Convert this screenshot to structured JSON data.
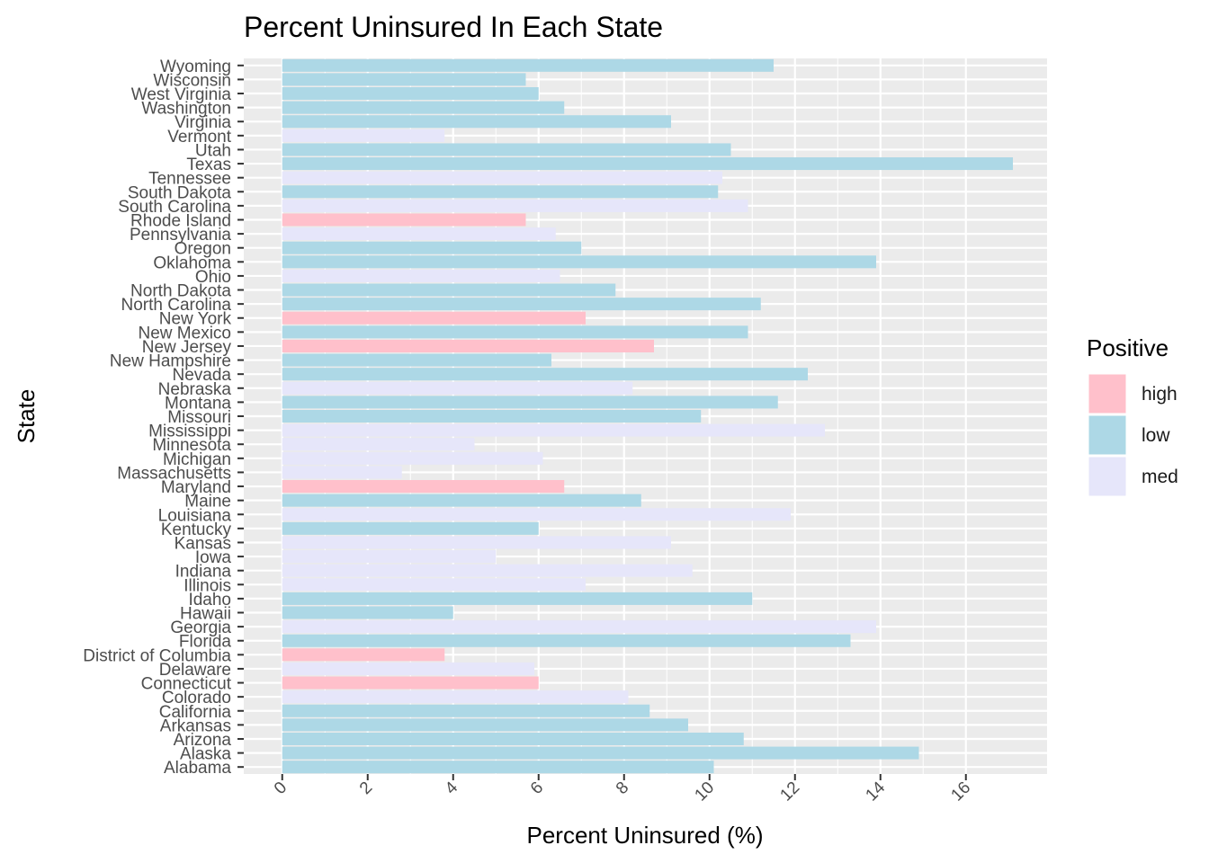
{
  "chart_data": {
    "type": "bar",
    "orientation": "horizontal",
    "title": "Percent Uninsured In Each State",
    "xlabel": "Percent Uninsured (%)",
    "ylabel": "State",
    "xlim": [
      -0.9,
      17.9
    ],
    "xticks": [
      0,
      2,
      4,
      6,
      8,
      10,
      12,
      14,
      16
    ],
    "grid": true,
    "legend": {
      "title": "Positive",
      "position": "right",
      "entries": [
        {
          "label": "high",
          "color": "#ffc0cb"
        },
        {
          "label": "low",
          "color": "#add8e6"
        },
        {
          "label": "med",
          "color": "#e6e6fa"
        }
      ]
    },
    "categories": [
      "Alabama",
      "Alaska",
      "Arizona",
      "Arkansas",
      "California",
      "Colorado",
      "Connecticut",
      "Delaware",
      "District of Columbia",
      "Florida",
      "Georgia",
      "Hawaii",
      "Idaho",
      "Illinois",
      "Indiana",
      "Iowa",
      "Kansas",
      "Kentucky",
      "Louisiana",
      "Maine",
      "Maryland",
      "Massachusetts",
      "Michigan",
      "Minnesota",
      "Mississippi",
      "Missouri",
      "Montana",
      "Nebraska",
      "Nevada",
      "New Hampshire",
      "New Jersey",
      "New Mexico",
      "New York",
      "North Carolina",
      "North Dakota",
      "Ohio",
      "Oklahoma",
      "Oregon",
      "Pennsylvania",
      "Rhode Island",
      "South Carolina",
      "South Dakota",
      "Tennessee",
      "Texas",
      "Utah",
      "Vermont",
      "Virginia",
      "Washington",
      "West Virginia",
      "Wisconsin",
      "Wyoming"
    ],
    "values": [
      10.1,
      14.9,
      10.8,
      9.5,
      8.6,
      8.1,
      6.0,
      5.9,
      3.8,
      13.3,
      13.9,
      4.0,
      11.0,
      7.1,
      9.6,
      5.0,
      9.1,
      6.0,
      11.9,
      8.4,
      6.6,
      2.8,
      6.1,
      4.5,
      12.7,
      9.8,
      11.6,
      8.2,
      12.3,
      6.3,
      8.7,
      10.9,
      7.1,
      11.2,
      7.8,
      6.5,
      13.9,
      7.0,
      6.4,
      5.7,
      10.9,
      10.2,
      10.3,
      17.1,
      10.5,
      3.8,
      9.1,
      6.6,
      6.0,
      5.7,
      11.5
    ],
    "groups": [
      "low",
      "low",
      "low",
      "low",
      "low",
      "med",
      "high",
      "med",
      "high",
      "low",
      "med",
      "low",
      "low",
      "med",
      "med",
      "med",
      "med",
      "low",
      "med",
      "low",
      "high",
      "med",
      "med",
      "med",
      "med",
      "low",
      "low",
      "med",
      "low",
      "low",
      "high",
      "low",
      "high",
      "low",
      "low",
      "med",
      "low",
      "low",
      "med",
      "high",
      "med",
      "low",
      "med",
      "low",
      "low",
      "med",
      "low",
      "low",
      "low",
      "low",
      "low"
    ]
  }
}
